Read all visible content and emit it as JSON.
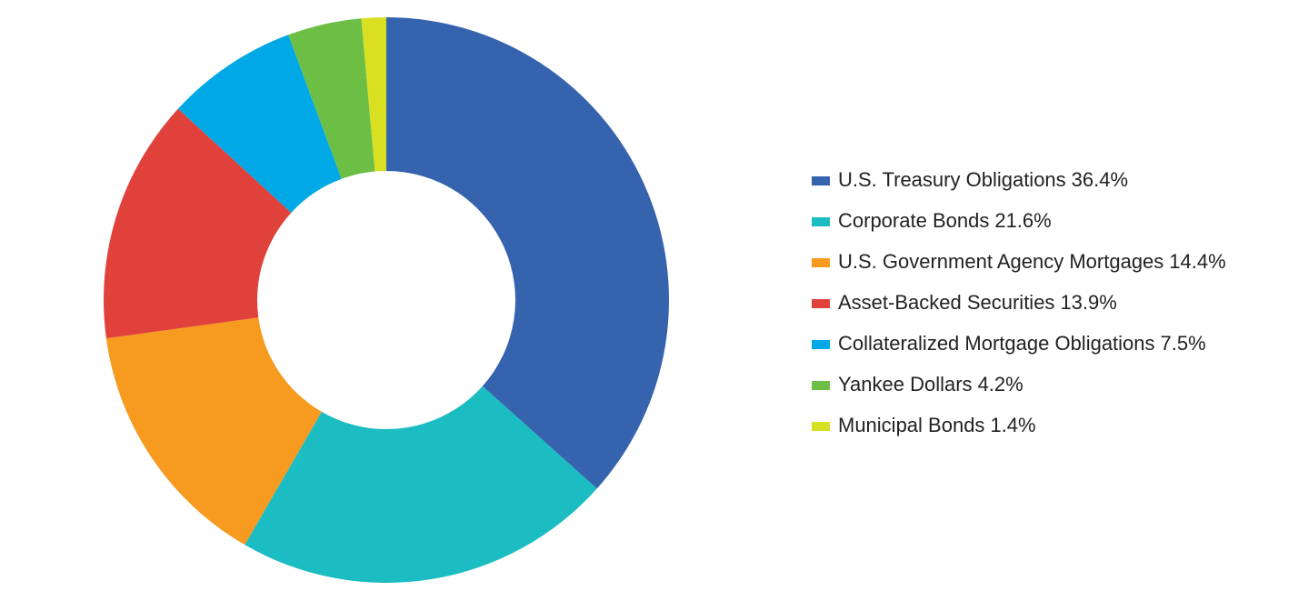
{
  "chart_data": {
    "type": "donut",
    "categories": [
      "U.S. Treasury Obligations",
      "Corporate Bonds",
      "U.S. Government Agency Mortgages",
      "Asset-Backed Securities",
      "Collateralized Mortgage Obligations",
      "Yankee Dollars",
      "Municipal Bonds"
    ],
    "values": [
      36.4,
      21.6,
      14.4,
      13.9,
      7.5,
      4.2,
      1.4
    ],
    "value_labels": [
      "36.4%",
      "21.6%",
      "14.4%",
      "13.9%",
      "7.5%",
      "4.2%",
      "1.4%"
    ],
    "colors": [
      "#3563ae",
      "#1cbdc2",
      "#f79a20",
      "#e0413b",
      "#00a9e6",
      "#6dbe45",
      "#d9e021"
    ],
    "legend": "right"
  }
}
